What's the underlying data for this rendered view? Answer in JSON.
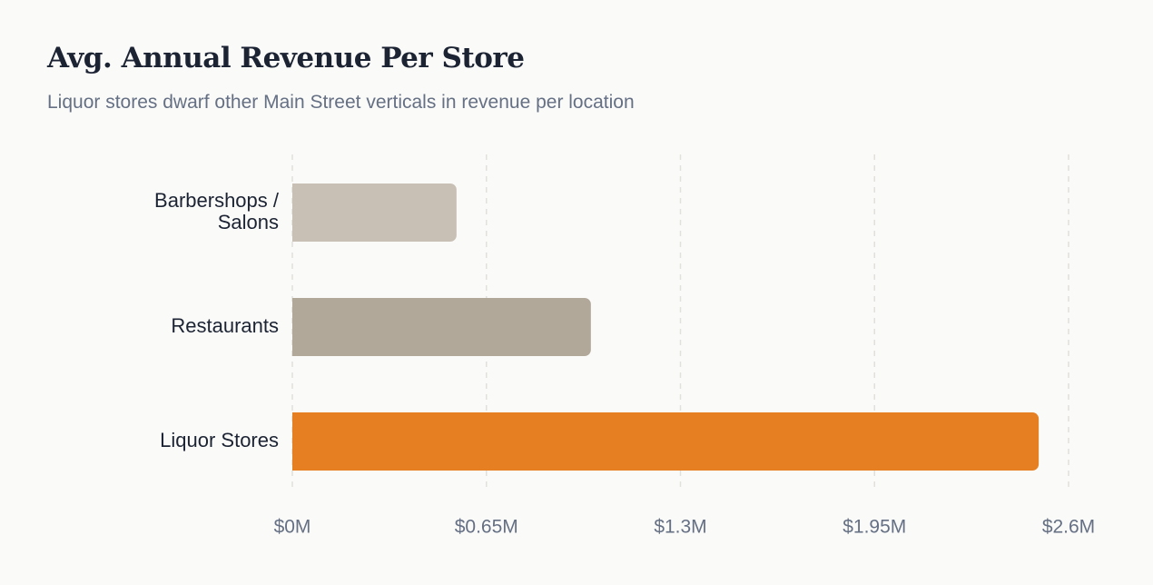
{
  "chart_data": {
    "type": "bar",
    "orientation": "horizontal",
    "title": "Avg. Annual Revenue Per Store",
    "subtitle": "Liquor stores dwarf other Main Street verticals in revenue per location",
    "categories": [
      [
        "Barbershops /",
        "Salons"
      ],
      [
        "Restaurants"
      ],
      [
        "Liquor Stores"
      ]
    ],
    "values": [
      0.55,
      1.0,
      2.5
    ],
    "value_unit": "$M",
    "xlim": [
      0,
      2.6
    ],
    "x_ticks": [
      0,
      0.65,
      1.3,
      1.95,
      2.6
    ],
    "x_tick_labels": [
      "$0M",
      "$0.65M",
      "$1.3M",
      "$1.95M",
      "$2.6M"
    ],
    "grid": "vertical-dashed",
    "legend": "none",
    "colors": [
      "#c9c0b5",
      "#b2a899",
      "#e67e22"
    ],
    "grid_color": "#e2e0dc"
  }
}
